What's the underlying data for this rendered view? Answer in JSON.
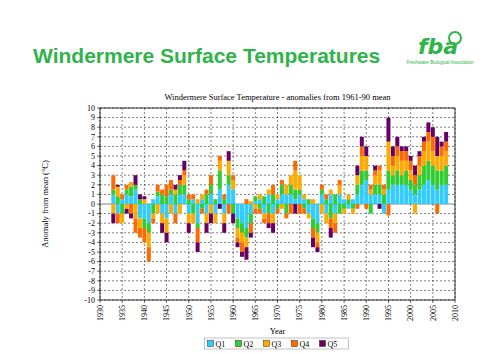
{
  "header": {
    "title": "Windermere Surface Temperatures",
    "logo": "fba",
    "logo_caption": "Freshwater Biological Association"
  },
  "chart_data": {
    "type": "bar",
    "stacked": true,
    "grid": true,
    "legend": "bottom",
    "title": "Windermere Surface Temperature - anomalies from 1961-90 mean",
    "x_label": "Year",
    "y_label": "Anomaly from mean (°C)",
    "xlim": [
      1930,
      2010
    ],
    "xticks": [
      1930,
      1935,
      1940,
      1945,
      1950,
      1955,
      1960,
      1965,
      1970,
      1975,
      1980,
      1985,
      1990,
      1995,
      2000,
      2005,
      2010
    ],
    "ylim": [
      -10,
      10
    ],
    "yticks": [
      -10,
      -9,
      -8,
      -7,
      -6,
      -5,
      -4,
      -3,
      -2,
      -1,
      0,
      1,
      2,
      3,
      4,
      5,
      6,
      7,
      8,
      9,
      10
    ],
    "x": [
      1933,
      1934,
      1935,
      1936,
      1937,
      1938,
      1939,
      1940,
      1941,
      1942,
      1943,
      1944,
      1945,
      1946,
      1947,
      1948,
      1949,
      1950,
      1951,
      1952,
      1953,
      1954,
      1955,
      1956,
      1957,
      1958,
      1959,
      1960,
      1961,
      1962,
      1963,
      1964,
      1965,
      1966,
      1967,
      1968,
      1969,
      1970,
      1971,
      1972,
      1973,
      1974,
      1975,
      1976,
      1977,
      1978,
      1979,
      1980,
      1981,
      1982,
      1983,
      1984,
      1985,
      1986,
      1987,
      1988,
      1989,
      1990,
      1991,
      1992,
      1993,
      1994,
      1995,
      1996,
      1997,
      1998,
      1999,
      2000,
      2001,
      2002,
      2003,
      2004,
      2005,
      2006,
      2007,
      2008
    ],
    "series": [
      {
        "name": "Q1",
        "color": "#33ccff",
        "values": [
          1,
          -1,
          0.5,
          1,
          0.8,
          1.5,
          -1.5,
          -1.5,
          -2,
          0.5,
          0.8,
          -1,
          -1.5,
          1,
          -1,
          1,
          1,
          -1,
          0.5,
          -2,
          0.5,
          -1,
          1,
          -1,
          1.5,
          -1,
          2,
          1.5,
          -1.5,
          -2,
          -2.5,
          -1,
          0.3,
          0.5,
          -1,
          1,
          -1,
          0.5,
          1,
          1,
          1,
          0.5,
          1,
          0.5,
          -1,
          -1.5,
          -2,
          1,
          -1,
          1,
          -1,
          1,
          0.5,
          -0.5,
          0.5,
          1,
          2,
          2.5,
          1,
          1,
          1,
          -1,
          1.5,
          2,
          2,
          2,
          2,
          1.5,
          1,
          1.5,
          2,
          2.5,
          2,
          1.5,
          2,
          2
        ]
      },
      {
        "name": "Q2",
        "color": "#33cc33",
        "values": [
          0.5,
          0.8,
          -1,
          0.5,
          1,
          0.5,
          0.5,
          -1,
          -1,
          -1,
          0.5,
          1,
          0.8,
          0.5,
          1,
          1,
          1,
          0.5,
          -1,
          -0.5,
          -0.5,
          1,
          1,
          0.5,
          2,
          0.5,
          1,
          -1,
          -1,
          -1,
          -1,
          -1,
          0.5,
          -0.5,
          0.8,
          -1,
          1,
          -0.5,
          1,
          -1,
          1,
          1,
          0.5,
          -0.5,
          0.5,
          -1,
          -1,
          0.5,
          0.5,
          -1.5,
          1,
          -1,
          -0.5,
          0.5,
          -0.5,
          1,
          1.5,
          1,
          -1,
          1,
          1,
          1,
          2,
          1,
          1.5,
          1,
          1.5,
          1,
          1,
          1.5,
          2,
          2,
          2,
          2,
          1.5,
          2
        ]
      },
      {
        "name": "Q3",
        "color": "#ffaa00",
        "values": [
          -1,
          1,
          -1,
          -0.5,
          0.5,
          -1.5,
          -1,
          0.5,
          -1.5,
          -0.5,
          -1,
          -1,
          -1.5,
          -1,
          0.5,
          -1,
          1,
          -1,
          -1,
          0.5,
          0.5,
          -1,
          -1,
          -1,
          1,
          -1,
          1.5,
          1,
          -1,
          -1,
          -1,
          0.3,
          -0.5,
          0.5,
          -0.5,
          0.5,
          -1,
          0.5,
          -0.5,
          1,
          1,
          2,
          1.5,
          0.5,
          -0.5,
          0.5,
          -1,
          -1,
          -1,
          0.5,
          -1,
          1,
          -0.5,
          0.5,
          -0.5,
          1,
          1.5,
          1.5,
          0.5,
          1,
          1.5,
          0.5,
          3,
          1,
          1.5,
          1.5,
          1,
          1,
          -1,
          1,
          1.5,
          2,
          1.5,
          1.5,
          1.5,
          1.5
        ]
      },
      {
        "name": "Q4",
        "color": "#ff6a00",
        "values": [
          1.5,
          -1,
          0.5,
          0.5,
          -1,
          -1.5,
          -1,
          -1.5,
          -1.5,
          -0.5,
          0.7,
          0.5,
          1.2,
          1,
          -1,
          0.5,
          0.5,
          0.5,
          0.5,
          -1.5,
          -0.5,
          0.5,
          1,
          0,
          0.5,
          0.5,
          -1,
          0.5,
          -0.5,
          -1,
          0.5,
          -1,
          -0.5,
          -0.5,
          -0.5,
          -1,
          1,
          -0.5,
          0.5,
          -0.5,
          -1,
          1,
          -1,
          -0.5,
          0,
          -1,
          -0.5,
          0.5,
          0.5,
          -1,
          -1,
          0.5,
          0,
          0,
          0,
          -0.5,
          1,
          -0.5,
          0.5,
          0.5,
          0.5,
          0.5,
          -1.2,
          1,
          1,
          1,
          1,
          1,
          1,
          1,
          1,
          1,
          1.5,
          -1,
          1,
          1
        ]
      },
      {
        "name": "Q5",
        "color": "#660066",
        "values": [
          -1,
          0.2,
          0,
          -0.5,
          -0.5,
          1,
          0.5,
          0.3,
          0,
          0,
          0,
          -1,
          -1,
          0,
          0.5,
          0.5,
          1,
          -1,
          0,
          -1,
          0,
          -1,
          -1,
          0,
          -0.5,
          -1,
          1,
          -1,
          -0.5,
          -0.5,
          -1.3,
          -0.5,
          0,
          0,
          0,
          -0.5,
          -1,
          0,
          0,
          0,
          0,
          -1,
          0,
          0,
          0,
          -1,
          -0.5,
          0,
          0,
          -1,
          0,
          0,
          0,
          0,
          0,
          1,
          1,
          1,
          0,
          0.5,
          -0.5,
          0,
          2.5,
          1,
          1,
          0.5,
          0.5,
          0.5,
          1,
          0.5,
          0.5,
          1,
          1,
          2,
          0.5,
          1
        ]
      }
    ]
  }
}
